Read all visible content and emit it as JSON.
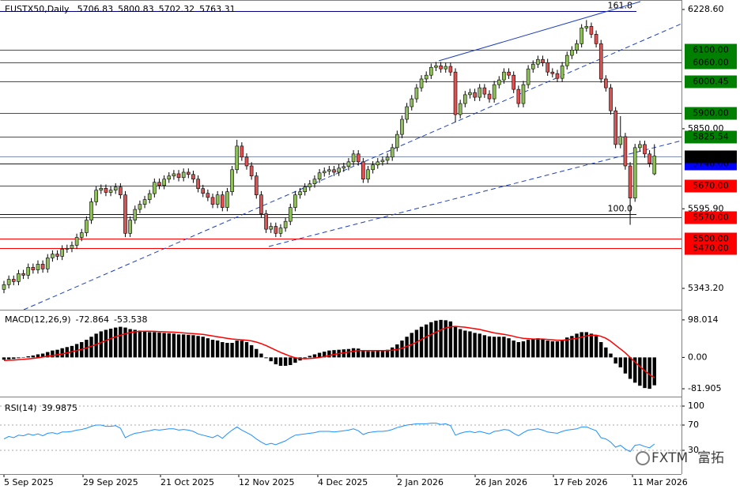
{
  "chart_data": [
    {
      "type": "candlestick",
      "title": "EUSTX50,Daily",
      "up_color": "#8fbf5a",
      "down_color": "#e05050",
      "ylim": [
        5280.5,
        6251.2
      ],
      "yticks": [
        {
          "value": 6228.6,
          "label": "6228.60"
        },
        {
          "value": 5850,
          "label": "5850.00"
        },
        {
          "value": 5595.9,
          "label": "5595.90"
        },
        {
          "value": 5343.2,
          "label": "5343.20"
        }
      ],
      "xtick_labels": [
        "5 Sep 2025",
        "29 Sep 2025",
        "21 Oct 2025",
        "12 Nov 2025",
        "4 Dec 2025",
        "2 Jan 2026",
        "26 Jan 2026",
        "17 Feb 2026",
        "11 Mar 2026"
      ],
      "levels": [
        {
          "value": 6100,
          "label": "6100.00",
          "color": "#008000",
          "text_color": "#000000"
        },
        {
          "value": 6060,
          "label": "6060.00",
          "color": "#008000",
          "text_color": "#000000"
        },
        {
          "value": 6000.45,
          "label": "6000.45",
          "color": "#008000",
          "text_color": "#000000"
        },
        {
          "value": 5900,
          "label": "5900.00",
          "color": "#008000",
          "text_color": "#000000"
        },
        {
          "value": 5825.54,
          "label": "5825.54",
          "color": "#008000",
          "text_color": "#000000"
        },
        {
          "value": 5740,
          "label": "5740.00",
          "color": "#0000ff",
          "text_color": "#ffffff"
        },
        {
          "value": 5670,
          "label": "5670.00",
          "color": "#ff0000",
          "text_color": "#ffffff"
        },
        {
          "value": 5570,
          "label": "5570.00",
          "color": "#ff0000",
          "text_color": "#ffffff"
        },
        {
          "value": 5500,
          "label": "5500.00",
          "color": "#ff0000",
          "text_color": "#ffffff"
        },
        {
          "value": 5470,
          "label": "5470.00",
          "color": "#ff0000",
          "text_color": "#ffffff"
        }
      ],
      "fib_levels": [
        {
          "value": 6224,
          "label": "161.8"
        },
        {
          "value": 5580,
          "label": "100.0"
        }
      ],
      "open": [
        5340,
        5355,
        5372,
        5365,
        5390,
        5385,
        5410,
        5402,
        5420,
        5405,
        5440,
        5452,
        5445,
        5468,
        5470,
        5480,
        5505,
        5520,
        5560,
        5618,
        5655,
        5661,
        5648,
        5655,
        5665,
        5640,
        5518,
        5560,
        5594,
        5610,
        5625,
        5644,
        5680,
        5670,
        5690,
        5700,
        5707,
        5695,
        5712,
        5705,
        5690,
        5660,
        5645,
        5632,
        5610,
        5640,
        5600,
        5650,
        5720,
        5795,
        5760,
        5732,
        5700,
        5640,
        5580,
        5531,
        5540,
        5518,
        5535,
        5556,
        5600,
        5640,
        5650,
        5665,
        5675,
        5690,
        5710,
        5715,
        5720,
        5712,
        5725,
        5730,
        5745,
        5770,
        5745,
        5690,
        5720,
        5735,
        5745,
        5750,
        5760,
        5790,
        5832,
        5880,
        5920,
        5945,
        5980,
        6008,
        6020,
        6045,
        6050,
        6040,
        6048,
        6030,
        5895,
        5930,
        5958,
        5965,
        5950,
        5980,
        5960,
        5945,
        5990,
        6005,
        6030,
        6020,
        5975,
        5930,
        5990,
        6040,
        6055,
        6070,
        6060,
        6030,
        6025,
        6010,
        6050,
        6083,
        6100,
        6120,
        6170,
        6175,
        6150,
        6120,
        6008,
        5980,
        5907,
        5800,
        5825,
        5732,
        5630,
        5790,
        5800,
        5770,
        5706.83
      ],
      "high": [
        5367,
        5384,
        5384,
        5402,
        5402,
        5422,
        5422,
        5432,
        5432,
        5452,
        5464,
        5464,
        5480,
        5482,
        5492,
        5517,
        5532,
        5572,
        5630,
        5667,
        5673,
        5673,
        5667,
        5677,
        5677,
        5652,
        5572,
        5606,
        5622,
        5637,
        5656,
        5692,
        5692,
        5702,
        5712,
        5719,
        5719,
        5724,
        5724,
        5717,
        5702,
        5672,
        5657,
        5644,
        5652,
        5652,
        5662,
        5732,
        5815,
        5807,
        5772,
        5744,
        5712,
        5652,
        5592,
        5552,
        5552,
        5547,
        5568,
        5612,
        5652,
        5662,
        5677,
        5687,
        5702,
        5722,
        5727,
        5732,
        5732,
        5737,
        5742,
        5757,
        5782,
        5782,
        5757,
        5732,
        5747,
        5757,
        5762,
        5772,
        5802,
        5844,
        5892,
        5932,
        5957,
        5992,
        6020,
        6032,
        6057,
        6062,
        6062,
        6060,
        6060,
        6042,
        5942,
        5970,
        5977,
        5977,
        5992,
        5992,
        5972,
        6002,
        6017,
        6042,
        6042,
        6032,
        5987,
        6002,
        6052,
        6067,
        6082,
        6082,
        6072,
        6042,
        6037,
        6062,
        6095,
        6112,
        6132,
        6182,
        6195,
        6187,
        6162,
        6132,
        6020,
        5992,
        5919,
        5890,
        5837,
        5744,
        5802,
        5812,
        5812,
        5782,
        5800.83
      ],
      "low": [
        5328,
        5343,
        5353,
        5353,
        5373,
        5373,
        5390,
        5390,
        5393,
        5393,
        5428,
        5433,
        5433,
        5456,
        5458,
        5468,
        5493,
        5508,
        5548,
        5606,
        5643,
        5636,
        5636,
        5643,
        5628,
        5506,
        5506,
        5548,
        5582,
        5598,
        5613,
        5632,
        5658,
        5658,
        5678,
        5688,
        5683,
        5683,
        5693,
        5678,
        5648,
        5633,
        5620,
        5598,
        5598,
        5588,
        5588,
        5638,
        5708,
        5748,
        5720,
        5688,
        5628,
        5568,
        5519,
        5519,
        5506,
        5506,
        5523,
        5544,
        5588,
        5628,
        5638,
        5653,
        5663,
        5678,
        5698,
        5703,
        5700,
        5700,
        5713,
        5718,
        5733,
        5733,
        5678,
        5678,
        5708,
        5723,
        5733,
        5738,
        5748,
        5778,
        5820,
        5868,
        5908,
        5933,
        5968,
        5996,
        6008,
        6033,
        6028,
        6028,
        6018,
        5870,
        5883,
        5918,
        5946,
        5938,
        5938,
        5948,
        5933,
        5933,
        5978,
        5993,
        6008,
        5963,
        5918,
        5918,
        5978,
        6028,
        6043,
        6048,
        6018,
        6013,
        5998,
        5998,
        6038,
        6071,
        6088,
        6108,
        6158,
        6138,
        6108,
        5996,
        5968,
        5895,
        5788,
        5788,
        5720,
        5545,
        5618,
        5778,
        5758,
        5728,
        5702.32
      ],
      "close": [
        5355,
        5372,
        5365,
        5390,
        5385,
        5410,
        5402,
        5420,
        5405,
        5440,
        5452,
        5445,
        5468,
        5470,
        5480,
        5505,
        5520,
        5560,
        5618,
        5655,
        5661,
        5648,
        5655,
        5665,
        5640,
        5518,
        5560,
        5594,
        5610,
        5625,
        5644,
        5680,
        5670,
        5690,
        5700,
        5707,
        5695,
        5712,
        5705,
        5690,
        5660,
        5645,
        5632,
        5610,
        5640,
        5600,
        5650,
        5720,
        5795,
        5760,
        5732,
        5700,
        5640,
        5580,
        5531,
        5540,
        5518,
        5535,
        5556,
        5600,
        5640,
        5650,
        5665,
        5675,
        5690,
        5710,
        5715,
        5720,
        5712,
        5725,
        5730,
        5745,
        5770,
        5745,
        5690,
        5720,
        5735,
        5745,
        5750,
        5760,
        5790,
        5832,
        5880,
        5920,
        5945,
        5980,
        6008,
        6020,
        6045,
        6050,
        6040,
        6048,
        6030,
        5895,
        5930,
        5958,
        5965,
        5950,
        5980,
        5960,
        5945,
        5990,
        6005,
        6030,
        6020,
        5975,
        5930,
        5990,
        6040,
        6055,
        6070,
        6060,
        6030,
        6025,
        6010,
        6050,
        6083,
        6100,
        6120,
        6170,
        6175,
        6150,
        6120,
        6008,
        5980,
        5907,
        5800,
        5825,
        5732,
        5630,
        5790,
        5800,
        5770,
        5740,
        5763.31
      ]
    },
    {
      "type": "macd",
      "title": "MACD(12,26,9)",
      "histogram_color": "#000000",
      "signal_color": "#ff0000",
      "ylim": [
        -98.3,
        120.5
      ],
      "yticks": [
        98.014,
        {
          "value": 0,
          "label": "0.00"
        },
        -81.905
      ],
      "histogram": [
        -6,
        -5,
        -4,
        -2,
        0,
        3,
        5,
        8,
        10,
        14,
        18,
        20,
        24,
        27,
        30,
        35,
        40,
        46,
        54,
        62,
        68,
        72,
        75,
        78,
        80,
        78,
        74,
        72,
        70,
        68,
        66,
        66,
        65,
        64,
        63,
        62,
        60,
        60,
        59,
        58,
        56,
        54,
        50,
        46,
        44,
        40,
        38,
        38,
        44,
        44,
        40,
        32,
        22,
        10,
        -2,
        -10,
        -18,
        -22,
        -22,
        -20,
        -14,
        -8,
        -2,
        4,
        8,
        12,
        15,
        18,
        19,
        20,
        21,
        22,
        24,
        23,
        18,
        16,
        16,
        17,
        18,
        20,
        26,
        34,
        44,
        54,
        64,
        72,
        80,
        86,
        92,
        96,
        98,
        97,
        94,
        82,
        74,
        70,
        68,
        64,
        62,
        58,
        55,
        54,
        54,
        54,
        50,
        44,
        40,
        42,
        46,
        48,
        50,
        48,
        44,
        42,
        42,
        46,
        52,
        56,
        62,
        66,
        66,
        62,
        56,
        40,
        26,
        10,
        -16,
        -26,
        -42,
        -56,
        -66,
        -74,
        -80,
        -82,
        -72.864
      ],
      "signal": [
        -8,
        -7.5,
        -7,
        -6,
        -5,
        -4,
        -2.5,
        -1,
        1,
        3,
        5,
        7,
        9,
        12,
        15,
        18,
        21,
        25,
        29,
        34,
        39,
        44,
        49,
        54,
        58,
        62,
        65,
        67,
        68,
        68.5,
        68.5,
        68,
        67.5,
        67,
        66.5,
        66,
        65,
        64,
        63,
        62,
        61,
        60,
        58,
        56,
        54,
        52,
        50,
        48,
        47,
        46,
        45,
        43,
        40,
        36,
        31,
        25,
        19,
        13,
        8,
        3,
        -1,
        -3,
        -3.5,
        -3,
        -2,
        0,
        2,
        5,
        8,
        10,
        12,
        14,
        16,
        18,
        18,
        18,
        18,
        18,
        18,
        18,
        19,
        21,
        24,
        29,
        34,
        40,
        47,
        54,
        60,
        66,
        72,
        77,
        80,
        81,
        80,
        79,
        77,
        75,
        73,
        70,
        67,
        64,
        62,
        60,
        58,
        55,
        52,
        50,
        49,
        48,
        48,
        48,
        47,
        46,
        45,
        45,
        46,
        48,
        50,
        53,
        56,
        58,
        58,
        55,
        50,
        42,
        32,
        22,
        12,
        0,
        -12,
        -24,
        -35,
        -45,
        -53.538
      ]
    },
    {
      "type": "line",
      "title": "RSI(14)",
      "color": "#1e90ff",
      "grid": true,
      "ylim": [
        -7.5,
        111.25
      ],
      "yticks": [
        100,
        70,
        30
      ],
      "values": [
        48,
        52,
        50,
        54,
        53,
        56,
        54,
        56,
        53,
        57,
        58,
        56,
        59,
        59,
        60,
        62,
        63,
        65,
        68,
        70,
        70,
        68,
        68,
        69,
        65,
        50,
        54,
        57,
        58,
        60,
        61,
        63,
        62,
        63,
        64,
        64,
        62,
        63,
        62,
        60,
        56,
        54,
        52,
        50,
        54,
        49,
        56,
        62,
        67,
        62,
        58,
        54,
        48,
        43,
        39,
        41,
        39,
        42,
        45,
        50,
        54,
        55,
        56,
        57,
        58,
        60,
        60,
        60,
        59,
        60,
        61,
        62,
        64,
        61,
        55,
        58,
        59,
        60,
        60,
        61,
        63,
        66,
        68,
        70,
        71,
        72,
        72,
        72,
        73,
        73,
        71,
        72,
        69,
        54,
        57,
        59,
        60,
        58,
        60,
        58,
        56,
        60,
        61,
        63,
        62,
        57,
        53,
        58,
        62,
        63,
        64,
        62,
        59,
        58,
        57,
        60,
        62,
        63,
        64,
        67,
        67,
        64,
        61,
        50,
        48,
        43,
        35,
        38,
        32,
        28,
        38,
        39,
        36,
        34,
        39.9875
      ]
    }
  ],
  "watermark": {
    "brand": "FXTM",
    "local_name": "富拓"
  }
}
